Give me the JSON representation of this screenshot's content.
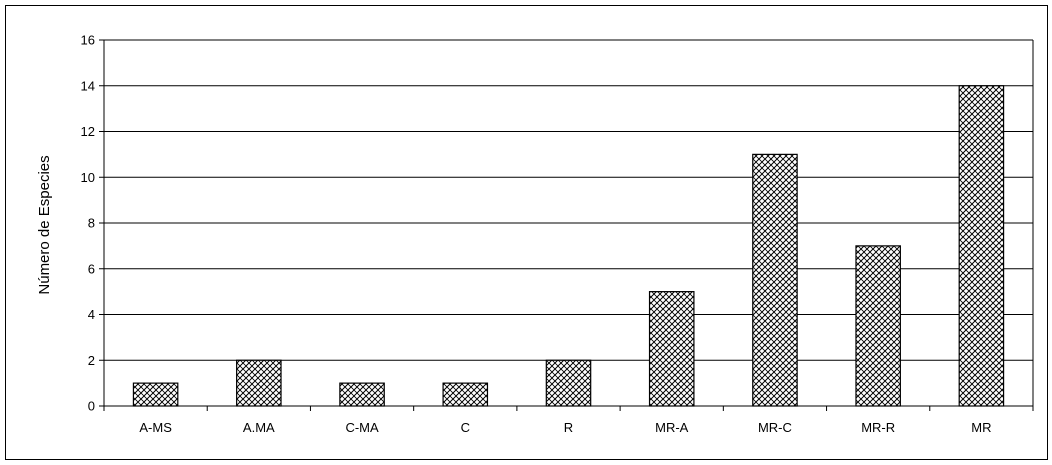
{
  "chart_data": {
    "type": "bar",
    "title": "",
    "xlabel": "",
    "ylabel": "Número de Especies",
    "categories": [
      "A-MS",
      "A.MA",
      "C-MA",
      "C",
      "R",
      "MR-A",
      "MR-C",
      "MR-R",
      "MR"
    ],
    "values": [
      1,
      2,
      1,
      1,
      2,
      5,
      11,
      7,
      14
    ],
    "ylim": [
      0,
      16
    ],
    "yticks": [
      "0",
      "2",
      "4",
      "6",
      "8",
      "10",
      "12",
      "14",
      "16"
    ],
    "grid": "horizontal",
    "legend": "none",
    "bar_fill": "crosshatch pattern",
    "colors": {
      "bar_pattern_fg": "#000000",
      "bar_pattern_bg": "#ffffff",
      "gridline": "#000000",
      "background": "#ffffff"
    }
  }
}
